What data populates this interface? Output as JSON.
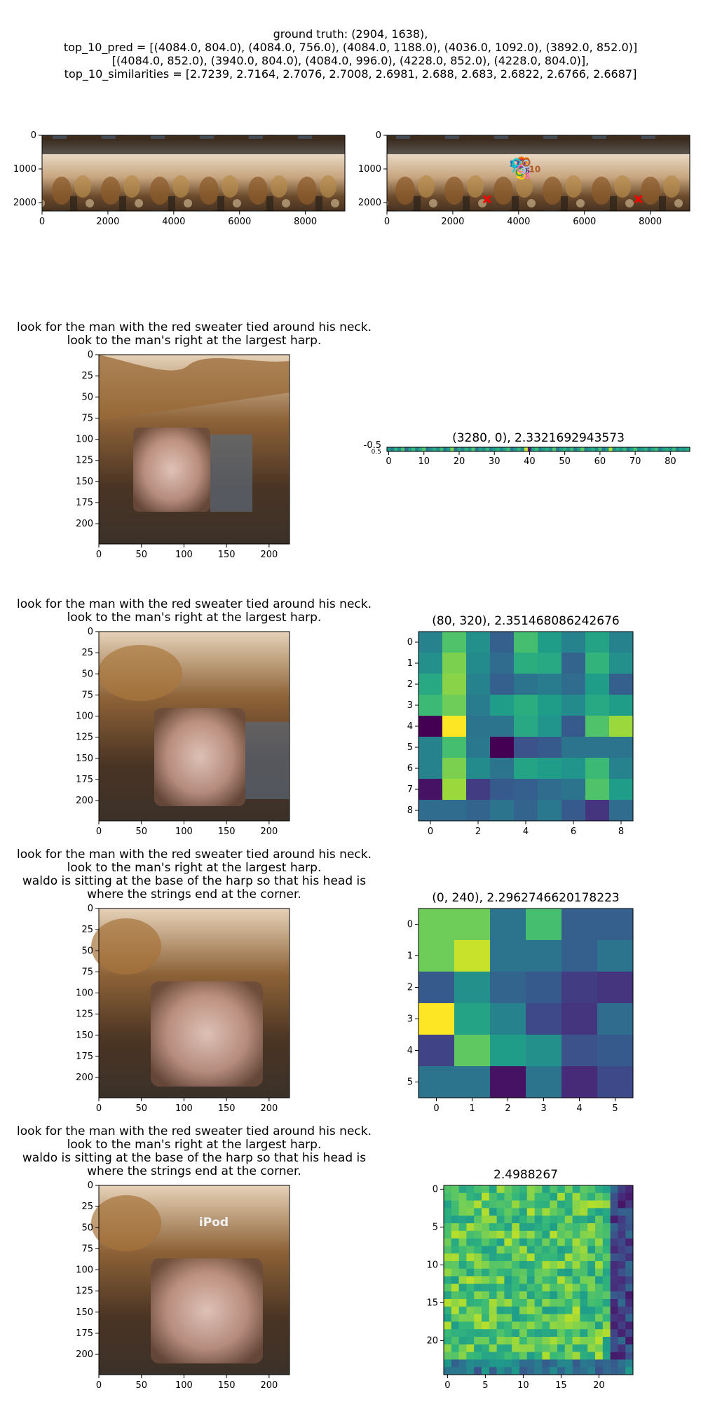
{
  "header": {
    "lines": [
      "ground truth: (2904, 1638),",
      "top_10_pred = [(4084.0, 804.0), (4084.0, 756.0), (4084.0, 1188.0), (4036.0, 1092.0), (3892.0, 852.0)]",
      "[(4084.0, 852.0), (3940.0, 804.0), (4084.0, 996.0), (4228.0, 852.0), (4228.0, 804.0)],",
      "top_10_similarities = [2.7239, 2.7164, 2.7076, 2.7008, 2.6981, 2.688, 2.683, 2.6822, 2.6766, 2.6687]"
    ]
  },
  "panels": {
    "row1_left": {
      "xticks": [
        "0",
        "2000",
        "4000",
        "6000",
        "8000"
      ],
      "yticks": [
        "0",
        "1000",
        "2000"
      ]
    },
    "row1_right": {
      "xticks": [
        "0",
        "2000",
        "4000",
        "6000",
        "8000"
      ],
      "yticks": [
        "0",
        "1000",
        "2000"
      ]
    },
    "crop_axes": {
      "xticks": [
        "0",
        "50",
        "100",
        "150",
        "200"
      ],
      "yticks": [
        "0",
        "25",
        "50",
        "75",
        "100",
        "125",
        "150",
        "175",
        "200"
      ]
    },
    "row2": {
      "title_lines": [
        "look for the man with the red sweater tied around his neck.",
        "look to the man's right at the largest harp."
      ],
      "heat_title": "(3280, 0), 2.3321692943573",
      "heat_xticks": [
        "0",
        "10",
        "20",
        "30",
        "40",
        "50",
        "60",
        "70",
        "80"
      ],
      "heat_yticks": [
        "-0.5",
        "0.5"
      ]
    },
    "row3": {
      "title_lines": [
        "look for the man with the red sweater tied around his neck.",
        "look to the man's right at the largest harp."
      ],
      "heat_title": "(80, 320), 2.351468086242676",
      "heat_xticks": [
        "0",
        "2",
        "4",
        "6",
        "8"
      ],
      "heat_yticks": [
        "0",
        "1",
        "2",
        "3",
        "4",
        "5",
        "6",
        "7",
        "8"
      ]
    },
    "row4": {
      "title_lines": [
        "look for the man with the red sweater tied around his neck.",
        "look to the man's right at the largest harp.",
        "waldo is sitting at the base of the harp so that his head is",
        "where the strings end at the corner."
      ],
      "heat_title": "(0, 240), 2.2962746620178223",
      "heat_xticks": [
        "0",
        "1",
        "2",
        "3",
        "4",
        "5"
      ],
      "heat_yticks": [
        "0",
        "1",
        "2",
        "3",
        "4",
        "5"
      ]
    },
    "row5": {
      "title_lines": [
        "look for the man with the red sweater tied around his neck.",
        "look to the man's right at the largest harp.",
        "waldo is sitting at the base of the harp so that his head is",
        "where the strings end at the corner."
      ],
      "heat_title": "2.4988267",
      "image_label": "iPod",
      "heat_xticks": [
        "0",
        "5",
        "10",
        "15",
        "20"
      ],
      "heat_yticks": [
        "0",
        "5",
        "10",
        "15",
        "20"
      ]
    }
  },
  "chart_data": [
    {
      "type": "scatter",
      "name_hint": "panorama-with-markers",
      "ground_truth": [
        2904,
        1638
      ],
      "top_10_pred": [
        [
          4084.0,
          804.0
        ],
        [
          4084.0,
          756.0
        ],
        [
          4084.0,
          1188.0
        ],
        [
          4036.0,
          1092.0
        ],
        [
          3892.0,
          852.0
        ],
        [
          4084.0,
          852.0
        ],
        [
          3940.0,
          804.0
        ],
        [
          4084.0,
          996.0
        ],
        [
          4228.0,
          852.0
        ],
        [
          4228.0,
          804.0
        ]
      ],
      "top_10_similarities": [
        2.7239,
        2.7164,
        2.7076,
        2.7008,
        2.6981,
        2.688,
        2.683,
        2.6822,
        2.6766,
        2.6687
      ],
      "x_markers": [
        [
          3040,
          1900
        ],
        [
          7640,
          1900
        ]
      ],
      "pred_labels": [
        "1",
        "2",
        "3",
        "4",
        "5",
        "6",
        "7",
        "8",
        "9",
        "10"
      ],
      "xlim": [
        0,
        9200
      ],
      "ylim": [
        2250,
        0
      ]
    },
    {
      "type": "heatmap",
      "rows": 1,
      "cols": 86,
      "values": [
        [
          0.55,
          0.4,
          0.62,
          0.48,
          0.7,
          0.35,
          0.52,
          0.66,
          0.44,
          0.58,
          0.73,
          0.39,
          0.5,
          0.61,
          0.47,
          0.68,
          0.42,
          0.55,
          0.8,
          0.36,
          0.59,
          0.45,
          0.64,
          0.51,
          0.72,
          0.38,
          0.57,
          0.49,
          0.66,
          0.43,
          0.54,
          0.62,
          0.47,
          0.58,
          0.69,
          0.41,
          0.53,
          0.64,
          0.46,
          0.92,
          0.1,
          0.57,
          0.68,
          0.44,
          0.55,
          0.61,
          0.48,
          0.72,
          0.39,
          0.56,
          0.63,
          0.5,
          0.67,
          0.42,
          0.58,
          0.75,
          0.45,
          0.53,
          0.62,
          0.47,
          0.69,
          0.4,
          0.56,
          0.88,
          0.49,
          0.6,
          0.52,
          0.66,
          0.43,
          0.57,
          0.71,
          0.48,
          0.54,
          0.63,
          0.45,
          0.59,
          0.67,
          0.42,
          0.55,
          0.61,
          0.5,
          0.68,
          0.44,
          0.57,
          0.52,
          0.6
        ]
      ]
    },
    {
      "type": "heatmap",
      "rows": 9,
      "cols": 9,
      "values": [
        [
          0.45,
          0.72,
          0.5,
          0.3,
          0.7,
          0.55,
          0.45,
          0.58,
          0.45
        ],
        [
          0.5,
          0.8,
          0.48,
          0.35,
          0.62,
          0.6,
          0.32,
          0.65,
          0.5
        ],
        [
          0.6,
          0.82,
          0.45,
          0.3,
          0.38,
          0.42,
          0.35,
          0.55,
          0.3
        ],
        [
          0.68,
          0.78,
          0.42,
          0.55,
          0.62,
          0.55,
          0.48,
          0.6,
          0.55
        ],
        [
          0.0,
          1.0,
          0.38,
          0.38,
          0.6,
          0.52,
          0.28,
          0.72,
          0.85
        ],
        [
          0.45,
          0.7,
          0.4,
          0.0,
          0.25,
          0.28,
          0.38,
          0.38,
          0.38
        ],
        [
          0.45,
          0.8,
          0.48,
          0.38,
          0.58,
          0.55,
          0.52,
          0.68,
          0.45
        ],
        [
          0.05,
          0.85,
          0.18,
          0.28,
          0.3,
          0.35,
          0.38,
          0.72,
          0.55
        ],
        [
          0.35,
          0.35,
          0.32,
          0.38,
          0.32,
          0.4,
          0.28,
          0.15,
          0.35
        ]
      ]
    },
    {
      "type": "heatmap",
      "rows": 6,
      "cols": 6,
      "values": [
        [
          0.78,
          0.78,
          0.38,
          0.7,
          0.3,
          0.3
        ],
        [
          0.78,
          0.92,
          0.38,
          0.38,
          0.3,
          0.38
        ],
        [
          0.28,
          0.5,
          0.32,
          0.28,
          0.18,
          0.15
        ],
        [
          1.0,
          0.58,
          0.45,
          0.22,
          0.15,
          0.35
        ],
        [
          0.2,
          0.75,
          0.55,
          0.5,
          0.25,
          0.28
        ],
        [
          0.38,
          0.38,
          0.05,
          0.38,
          0.12,
          0.22
        ]
      ]
    },
    {
      "type": "heatmap",
      "rows": 25,
      "cols": 25,
      "generator": "seeded-pseudorandom",
      "seed": 7
    }
  ]
}
